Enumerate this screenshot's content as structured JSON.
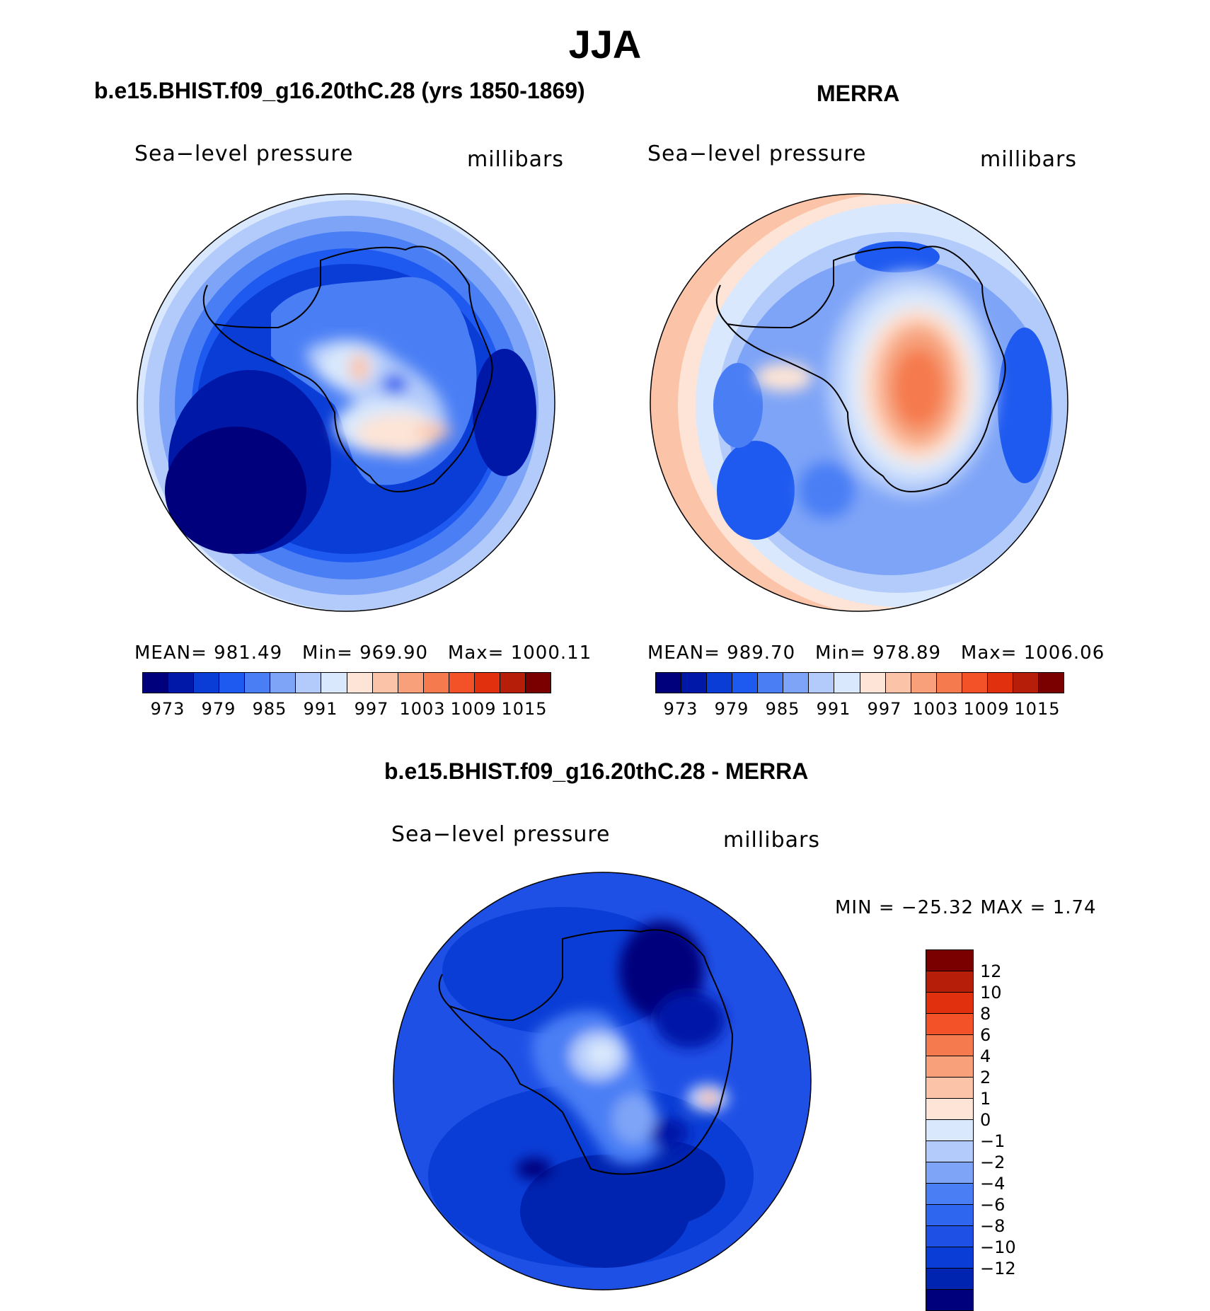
{
  "title": "JJA",
  "panels": {
    "model": {
      "title": "b.e15.BHIST.f09_g16.20thC.28 (yrs 1850-1869)",
      "variable": "Sea−level pressure",
      "units": "millibars",
      "stats": {
        "mean_label": "MEAN=",
        "mean": "981.49",
        "min_label": "Min=",
        "min": "969.90",
        "max_label": "Max=",
        "max": "1000.11"
      }
    },
    "obs": {
      "title": "MERRA",
      "variable": "Sea−level pressure",
      "units": "millibars",
      "stats": {
        "mean_label": "MEAN=",
        "mean": "989.70",
        "min_label": "Min=",
        "min": "978.89",
        "max_label": "Max=",
        "max": "1006.06"
      }
    },
    "diff": {
      "title": "b.e15.BHIST.f09_g16.20thC.28 - MERRA",
      "variable": "Sea−level pressure",
      "units": "millibars",
      "minmax": "MIN = −25.32 MAX =    1.74"
    }
  },
  "colorbars": {
    "abs": {
      "colors": [
        "#00007c",
        "#0018a8",
        "#0a3dd6",
        "#1f5af0",
        "#4a7ef5",
        "#7ea4f7",
        "#b3cbfa",
        "#d9e8fc",
        "#fde4d6",
        "#fbc3a7",
        "#f7a07a",
        "#f57a4e",
        "#f35128",
        "#e0300e",
        "#b61e0a",
        "#7a0000"
      ],
      "tick_labels": [
        "973",
        "979",
        "985",
        "991",
        "997",
        "1003",
        "1009",
        "1015"
      ]
    },
    "diff": {
      "colors": [
        "#7a0000",
        "#b61e0a",
        "#e0300e",
        "#f35128",
        "#f57a4e",
        "#f7a07a",
        "#fbc3a7",
        "#fde4d6",
        "#d9e8fc",
        "#b3cbfa",
        "#7ea4f7",
        "#4a7ef5",
        "#2e66f0",
        "#1f50e6",
        "#0a3dd6",
        "#0024b0",
        "#00007c"
      ],
      "tick_labels": [
        "12",
        "10",
        "8",
        "6",
        "4",
        "2",
        "1",
        "0",
        "−1",
        "−2",
        "−4",
        "−6",
        "−8",
        "−10",
        "−12"
      ]
    }
  }
}
